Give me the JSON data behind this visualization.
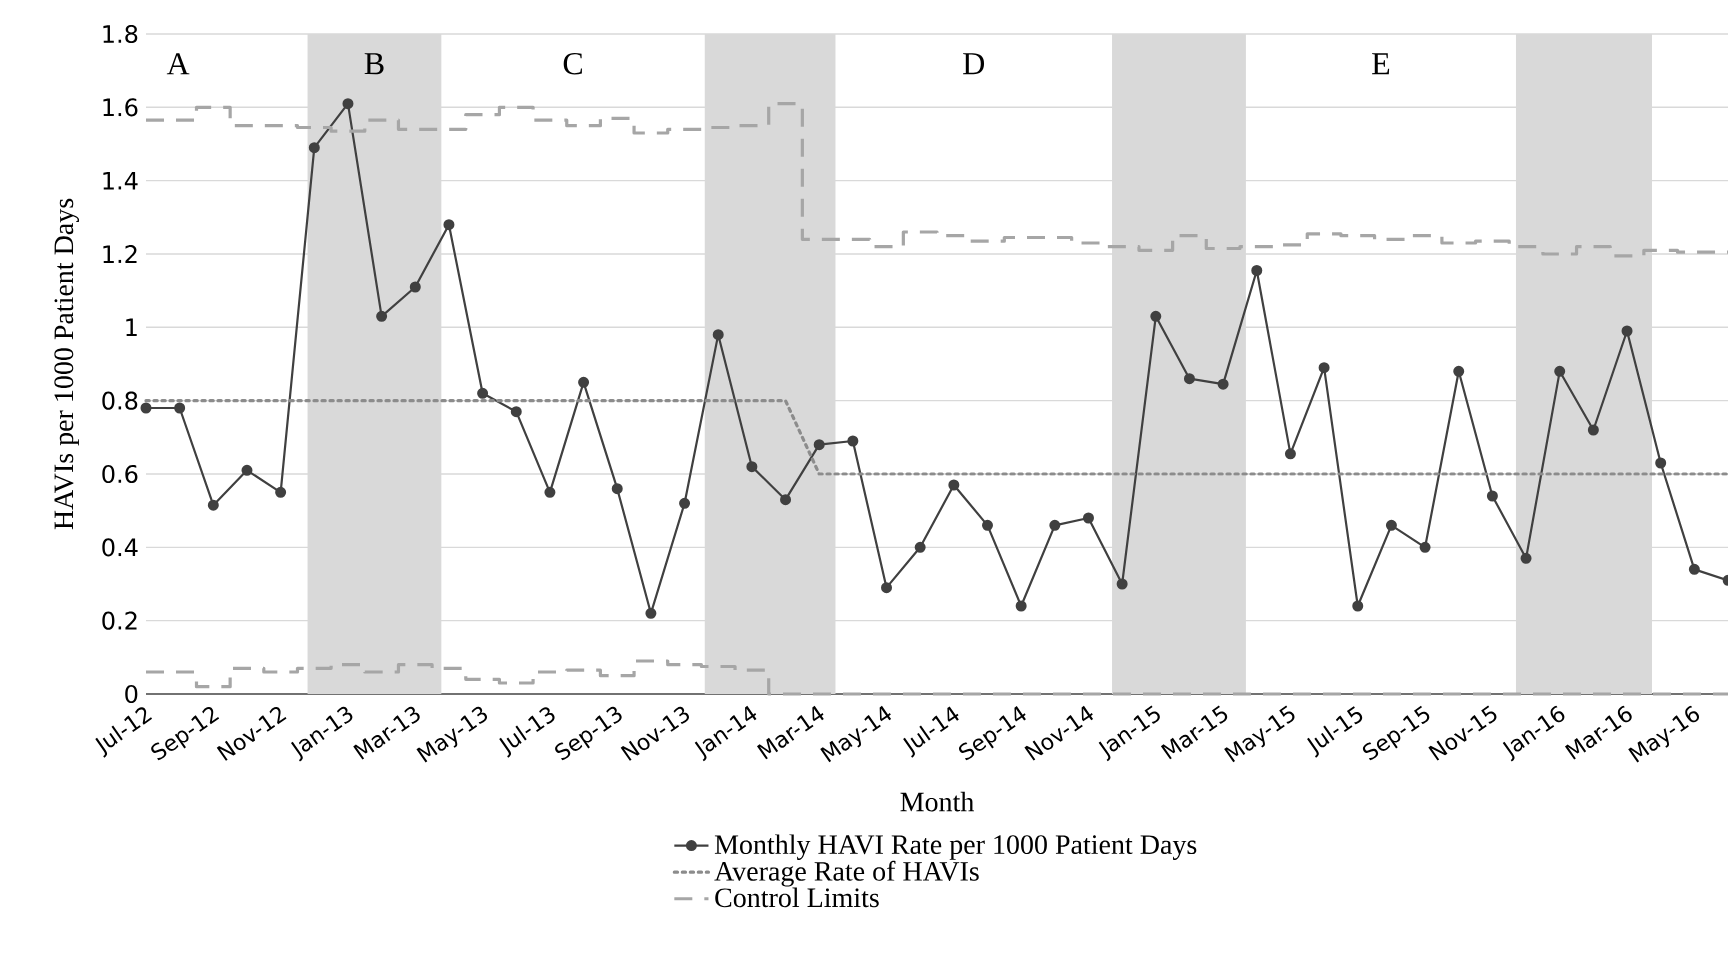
{
  "chart_data": {
    "type": "line",
    "xlabel": "Month",
    "ylabel": "HAVIs per 1000 Patient Days",
    "x": [
      "2012-07",
      "2012-08",
      "2012-09",
      "2012-10",
      "2012-11",
      "2012-12",
      "2013-01",
      "2013-02",
      "2013-03",
      "2013-04",
      "2013-05",
      "2013-06",
      "2013-07",
      "2013-08",
      "2013-09",
      "2013-10",
      "2013-11",
      "2013-12",
      "2014-01",
      "2014-02",
      "2014-03",
      "2014-04",
      "2014-05",
      "2014-06",
      "2014-07",
      "2014-08",
      "2014-09",
      "2014-10",
      "2014-11",
      "2014-12",
      "2015-01",
      "2015-02",
      "2015-03",
      "2015-04",
      "2015-05",
      "2015-06",
      "2015-07",
      "2015-08",
      "2015-09",
      "2015-10",
      "2015-11",
      "2015-12",
      "2016-01",
      "2016-02",
      "2016-03",
      "2016-04",
      "2016-05",
      "2016-06"
    ],
    "series": [
      {
        "name": "Monthly HAVI Rate per 1000 Patient Days",
        "color": "#404040",
        "marker": "circle",
        "line_style": "solid",
        "values": [
          0.78,
          0.78,
          0.515,
          0.61,
          0.55,
          1.49,
          1.61,
          1.03,
          1.11,
          1.28,
          0.82,
          0.77,
          0.55,
          0.85,
          0.56,
          0.22,
          0.52,
          0.98,
          0.62,
          0.53,
          0.68,
          0.69,
          0.29,
          0.4,
          0.57,
          0.46,
          0.24,
          0.46,
          0.48,
          0.3,
          1.03,
          0.86,
          0.845,
          1.155,
          0.655,
          0.89,
          0.24,
          0.46,
          0.4,
          0.88,
          0.54,
          0.37,
          0.88,
          0.72,
          0.99,
          0.63,
          0.34,
          0.31
        ]
      },
      {
        "name": "Average Rate of HAVIs",
        "color": "#8c8c8c",
        "marker": "none",
        "line_style": "dotted",
        "values": [
          0.8,
          0.8,
          0.8,
          0.8,
          0.8,
          0.8,
          0.8,
          0.8,
          0.8,
          0.8,
          0.8,
          0.8,
          0.8,
          0.8,
          0.8,
          0.8,
          0.8,
          0.8,
          0.8,
          0.8,
          0.6,
          0.6,
          0.6,
          0.6,
          0.6,
          0.6,
          0.6,
          0.6,
          0.6,
          0.6,
          0.6,
          0.6,
          0.6,
          0.6,
          0.6,
          0.6,
          0.6,
          0.6,
          0.6,
          0.6,
          0.6,
          0.6,
          0.6,
          0.6,
          0.6,
          0.6,
          0.6,
          0.6
        ]
      },
      {
        "name": "Control Limits",
        "type": "step",
        "color": "#a6a6a6",
        "marker": "none",
        "line_style": "dashed",
        "values": [
          1.565,
          1.565,
          1.6,
          1.55,
          1.55,
          1.545,
          1.535,
          1.565,
          1.54,
          1.54,
          1.58,
          1.6,
          1.565,
          1.55,
          1.57,
          1.53,
          1.54,
          1.545,
          1.55,
          1.61,
          1.24,
          1.24,
          1.22,
          1.26,
          1.25,
          1.235,
          1.245,
          1.245,
          1.23,
          1.22,
          1.21,
          1.25,
          1.215,
          1.22,
          1.225,
          1.255,
          1.25,
          1.24,
          1.25,
          1.23,
          1.235,
          1.22,
          1.2,
          1.22,
          1.195,
          1.21,
          1.205,
          1.205
        ]
      },
      {
        "type": "step",
        "color": "#a6a6a6",
        "marker": "none",
        "line_style": "dashed",
        "values": [
          0.06,
          0.06,
          0.02,
          0.07,
          0.06,
          0.07,
          0.08,
          0.06,
          0.08,
          0.07,
          0.04,
          0.03,
          0.06,
          0.065,
          0.05,
          0.09,
          0.08,
          0.075,
          0.065,
          0,
          0,
          0,
          0,
          0,
          0,
          0,
          0,
          0,
          0,
          0,
          0,
          0,
          0,
          0,
          0,
          0,
          0,
          0,
          0,
          0,
          0,
          0,
          0,
          0,
          0,
          0,
          0,
          0
        ]
      }
    ],
    "xlim": [
      "2012-07",
      "2016-06"
    ],
    "xticks": [
      {
        "value": "2012-07",
        "label": "Jul-12"
      },
      {
        "value": "2012-09",
        "label": "Sep-12"
      },
      {
        "value": "2012-11",
        "label": "Nov-12"
      },
      {
        "value": "2013-01",
        "label": "Jan-13"
      },
      {
        "value": "2013-03",
        "label": "Mar-13"
      },
      {
        "value": "2013-05",
        "label": "May-13"
      },
      {
        "value": "2013-07",
        "label": "Jul-13"
      },
      {
        "value": "2013-09",
        "label": "Sep-13"
      },
      {
        "value": "2013-11",
        "label": "Nov-13"
      },
      {
        "value": "2014-01",
        "label": "Jan-14"
      },
      {
        "value": "2014-03",
        "label": "Mar-14"
      },
      {
        "value": "2014-05",
        "label": "May-14"
      },
      {
        "value": "2014-07",
        "label": "Jul-14"
      },
      {
        "value": "2014-09",
        "label": "Sep-14"
      },
      {
        "value": "2014-11",
        "label": "Nov-14"
      },
      {
        "value": "2015-01",
        "label": "Jan-15"
      },
      {
        "value": "2015-03",
        "label": "Mar-15"
      },
      {
        "value": "2015-05",
        "label": "May-15"
      },
      {
        "value": "2015-07",
        "label": "Jul-15"
      },
      {
        "value": "2015-09",
        "label": "Sep-15"
      },
      {
        "value": "2015-11",
        "label": "Nov-15"
      },
      {
        "value": "2016-01",
        "label": "Jan-16"
      },
      {
        "value": "2016-03",
        "label": "Mar-16"
      },
      {
        "value": "2016-05",
        "label": "May-16"
      }
    ],
    "ylim": [
      0,
      1.8
    ],
    "yticks": [
      0,
      0.2,
      0.4,
      0.6,
      0.8,
      1,
      1.2,
      1.4,
      1.6,
      1.8
    ],
    "grid": "y",
    "legend": "bottom",
    "bands": [
      {
        "axis": "x",
        "from": "2012-11-25",
        "to": "2013-03-25",
        "color": "#d9d9d9"
      },
      {
        "axis": "x",
        "from": "2013-11-19",
        "to": "2014-03-16",
        "color": "#d9d9d9"
      },
      {
        "axis": "x",
        "from": "2014-11-22",
        "to": "2015-03-22",
        "color": "#d9d9d9"
      },
      {
        "axis": "x",
        "from": "2015-11-22",
        "to": "2016-03-24",
        "color": "#d9d9d9"
      }
    ],
    "annotations": [
      "A",
      "B",
      "C",
      "D",
      "E"
    ]
  }
}
